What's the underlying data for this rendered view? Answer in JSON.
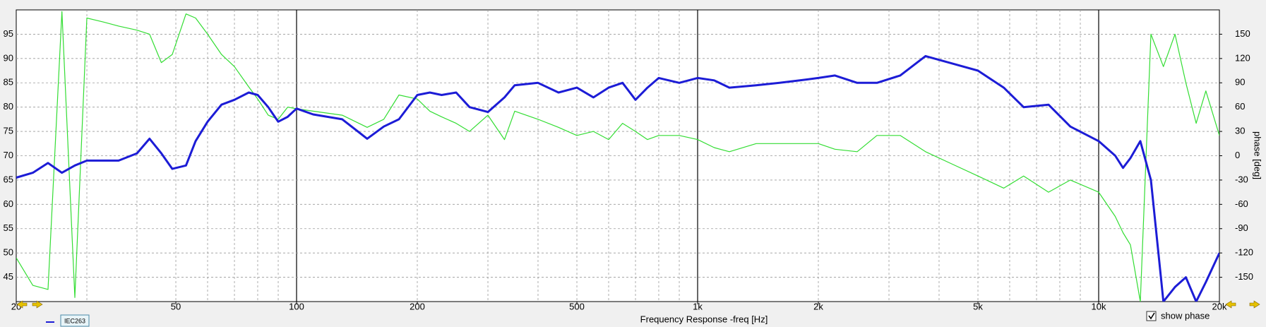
{
  "chart_data": {
    "type": "line",
    "x_label": "Frequency Response -freq [Hz]",
    "y2_label": "phase [deg]",
    "log_x": true,
    "grid": true,
    "xlim": [
      20,
      20000
    ],
    "xticks": [
      20,
      50,
      100,
      200,
      500,
      {
        "value": 1000,
        "label": "1k"
      },
      {
        "value": 2000,
        "label": "2k"
      },
      {
        "value": 5000,
        "label": "5k"
      },
      {
        "value": 10000,
        "label": "10k"
      },
      {
        "value": 20000,
        "label": "20k"
      }
    ],
    "ylim": [
      40,
      100
    ],
    "yticks": [
      45,
      50,
      55,
      60,
      65,
      70,
      75,
      80,
      85,
      90,
      95
    ],
    "y2lim": [
      -180,
      180
    ],
    "y2ticks": [
      -150,
      -120,
      -90,
      -60,
      -30,
      0,
      30,
      60,
      90,
      120,
      150
    ],
    "x": [
      20,
      22,
      24,
      26,
      28,
      30,
      33,
      36,
      40,
      43,
      46,
      49,
      53,
      56,
      60,
      65,
      70,
      76,
      80,
      85,
      90,
      95,
      100,
      110,
      130,
      150,
      165,
      180,
      200,
      215,
      230,
      250,
      270,
      300,
      330,
      350,
      400,
      450,
      500,
      550,
      600,
      650,
      700,
      750,
      800,
      900,
      1000,
      1100,
      1200,
      1400,
      1600,
      1800,
      2000,
      2200,
      2500,
      2800,
      3200,
      3700,
      4300,
      5000,
      5800,
      6500,
      7500,
      8500,
      10000,
      11000,
      11500,
      12000,
      12700,
      13500,
      14500,
      15500,
      16500,
      17500,
      18500,
      20000
    ],
    "series": [
      {
        "color": "#1c1cd6",
        "values": [
          65.5,
          66.5,
          68.5,
          66.5,
          68,
          69,
          69,
          69,
          70.5,
          73.5,
          70.5,
          67.3,
          68,
          73,
          77,
          80.5,
          81.5,
          83,
          82.5,
          80,
          77,
          78,
          79.7,
          78.5,
          77.5,
          73.5,
          76,
          77.5,
          82.5,
          83,
          82.5,
          83,
          80,
          79,
          82,
          84.5,
          85,
          83,
          84,
          82,
          84,
          85,
          81.5,
          84,
          86,
          85,
          86,
          85.5,
          84,
          84.5,
          85,
          85.5,
          86,
          86.5,
          85,
          85,
          86.5,
          90.5,
          89,
          87.5,
          84,
          80,
          80.5,
          76,
          73,
          70,
          67.5,
          69.5,
          73,
          65,
          40,
          43,
          45,
          40,
          44,
          50
        ]
      },
      {
        "color": "#33dd33",
        "axis": "y2",
        "values": [
          -126,
          -160,
          -165,
          178,
          -175,
          170,
          165,
          160,
          155,
          150,
          115,
          125,
          175,
          170,
          150,
          125,
          110,
          85,
          70,
          50,
          45,
          60,
          58,
          55,
          50,
          35,
          45,
          75,
          70,
          55,
          48,
          40,
          30,
          50,
          20,
          55,
          45,
          35,
          25,
          30,
          20,
          40,
          30,
          20,
          25,
          25,
          20,
          10,
          5,
          15,
          15,
          15,
          15,
          8,
          5,
          25,
          25,
          5,
          -10,
          -25,
          -40,
          -25,
          -45,
          -30,
          -45,
          -75,
          -95,
          -110,
          -180,
          150,
          110,
          150,
          90,
          40,
          80,
          25
        ]
      }
    ]
  },
  "legend_badge": "IEC263",
  "checkbox": {
    "label": "show phase",
    "checked": true
  }
}
